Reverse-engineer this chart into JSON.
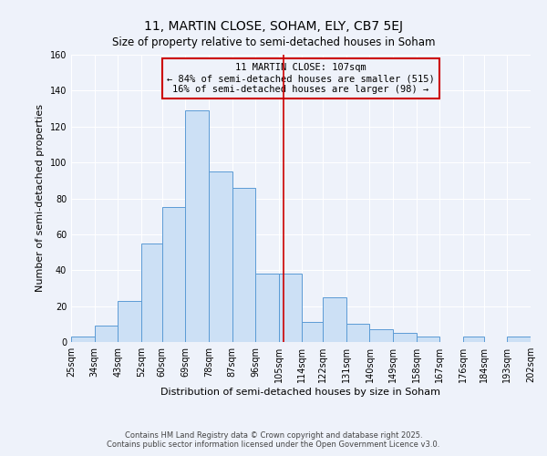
{
  "title": "11, MARTIN CLOSE, SOHAM, ELY, CB7 5EJ",
  "subtitle": "Size of property relative to semi-detached houses in Soham",
  "xlabel": "Distribution of semi-detached houses by size in Soham",
  "ylabel": "Number of semi-detached properties",
  "bin_edges": [
    25,
    34,
    43,
    52,
    60,
    69,
    78,
    87,
    96,
    105,
    114,
    122,
    131,
    140,
    149,
    158,
    167,
    176,
    184,
    193,
    202
  ],
  "bar_heights": [
    3,
    9,
    23,
    55,
    75,
    129,
    95,
    86,
    38,
    38,
    11,
    25,
    10,
    7,
    5,
    3,
    0,
    3,
    0,
    3
  ],
  "bar_color": "#cce0f5",
  "bar_edge_color": "#5b9bd5",
  "property_size": 107,
  "vline_color": "#cc0000",
  "annotation_text": "11 MARTIN CLOSE: 107sqm\n← 84% of semi-detached houses are smaller (515)\n16% of semi-detached houses are larger (98) →",
  "annotation_box_edge_color": "#cc0000",
  "ylim": [
    0,
    160
  ],
  "yticks": [
    0,
    20,
    40,
    60,
    80,
    100,
    120,
    140,
    160
  ],
  "tick_labels": [
    "25sqm",
    "34sqm",
    "43sqm",
    "52sqm",
    "60sqm",
    "69sqm",
    "78sqm",
    "87sqm",
    "96sqm",
    "105sqm",
    "114sqm",
    "122sqm",
    "131sqm",
    "140sqm",
    "149sqm",
    "158sqm",
    "167sqm",
    "176sqm",
    "184sqm",
    "193sqm",
    "202sqm"
  ],
  "footer_text": "Contains HM Land Registry data © Crown copyright and database right 2025.\nContains public sector information licensed under the Open Government Licence v3.0.",
  "background_color": "#eef2fa",
  "grid_color": "#ffffff",
  "title_fontsize": 10,
  "subtitle_fontsize": 8.5,
  "axis_label_fontsize": 8,
  "tick_fontsize": 7,
  "annotation_fontsize": 7.5,
  "footer_fontsize": 6
}
